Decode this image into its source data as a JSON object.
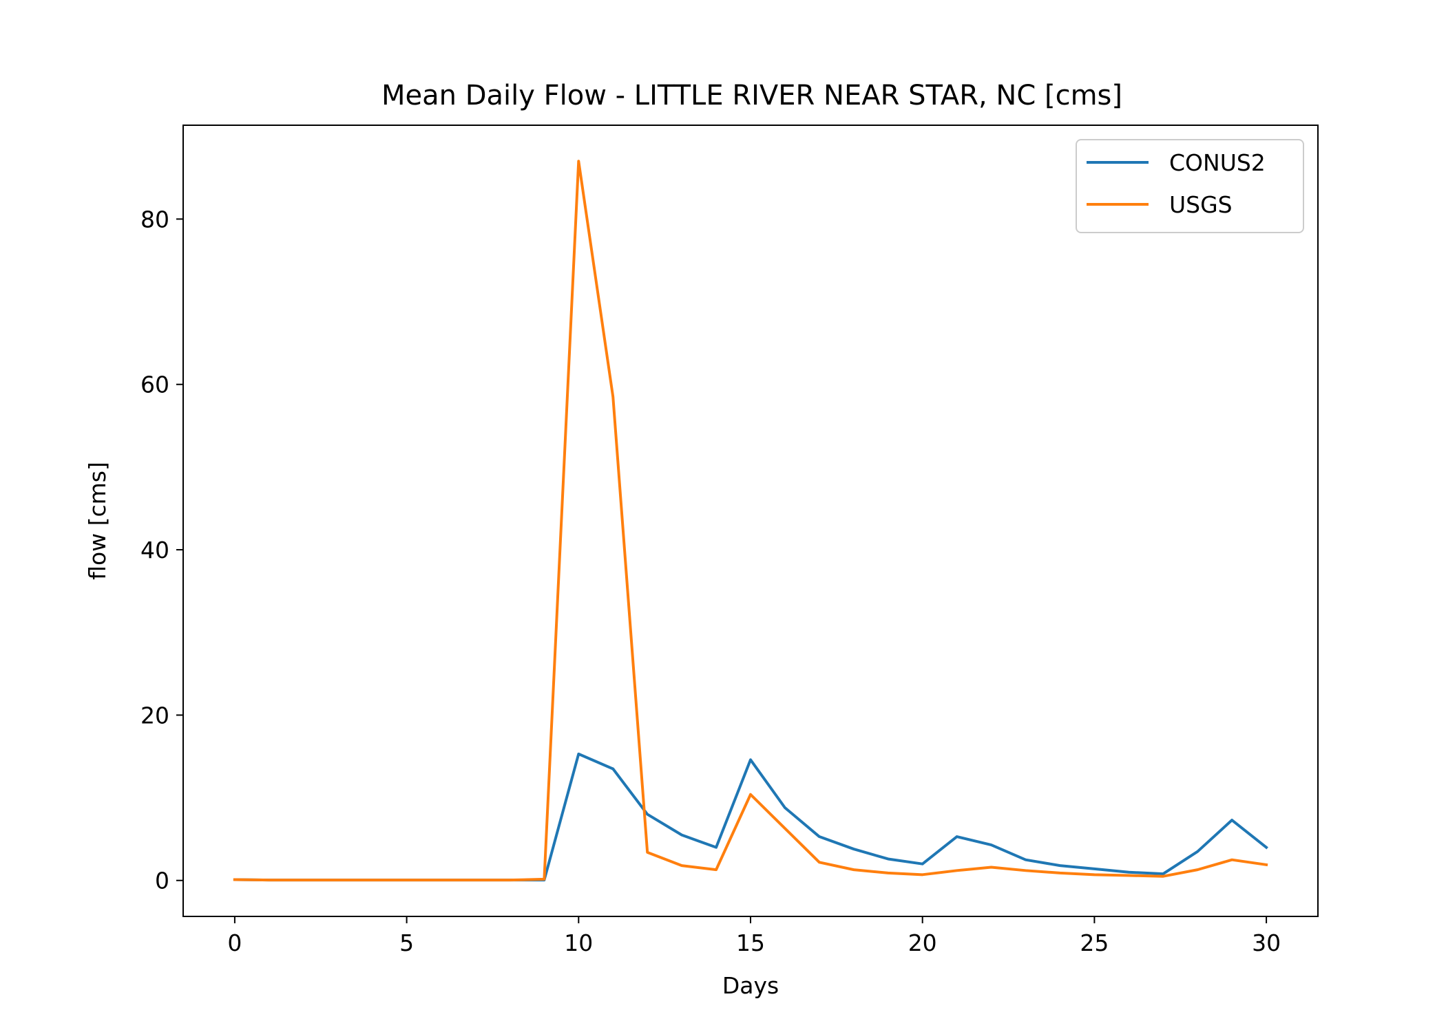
{
  "chart_data": {
    "type": "line",
    "title": "Mean Daily Flow - LITTLE RIVER NEAR STAR, NC [cms]",
    "xlabel": "Days",
    "ylabel": "flow [cms]",
    "xlim": [
      -1.5,
      31.5
    ],
    "ylim": [
      -4.35,
      91.35
    ],
    "xticks": [
      0,
      5,
      10,
      15,
      20,
      25,
      30
    ],
    "yticks": [
      0,
      20,
      40,
      60,
      80
    ],
    "grid": false,
    "legend_position": "top-right",
    "x": [
      0,
      1,
      2,
      3,
      4,
      5,
      6,
      7,
      8,
      9,
      10,
      11,
      12,
      13,
      14,
      15,
      16,
      17,
      18,
      19,
      20,
      21,
      22,
      23,
      24,
      25,
      26,
      27,
      28,
      29,
      30
    ],
    "series": [
      {
        "name": "CONUS2",
        "color": "#1f77b4",
        "values": [
          0.1,
          0.05,
          0.05,
          0.05,
          0.05,
          0.05,
          0.05,
          0.05,
          0.05,
          0.05,
          15.3,
          13.5,
          8.0,
          5.5,
          4.0,
          14.6,
          8.8,
          5.3,
          3.8,
          2.6,
          2.0,
          5.3,
          4.3,
          2.5,
          1.8,
          1.4,
          1.0,
          0.8,
          3.5,
          7.3,
          4.0
        ]
      },
      {
        "name": "USGS",
        "color": "#ff7f0e",
        "values": [
          0.1,
          0.05,
          0.05,
          0.05,
          0.05,
          0.05,
          0.05,
          0.05,
          0.05,
          0.15,
          87.0,
          58.5,
          3.4,
          1.8,
          1.3,
          10.4,
          6.3,
          2.2,
          1.3,
          0.9,
          0.7,
          1.2,
          1.6,
          1.2,
          0.9,
          0.7,
          0.6,
          0.5,
          1.3,
          2.5,
          1.9
        ]
      }
    ]
  }
}
